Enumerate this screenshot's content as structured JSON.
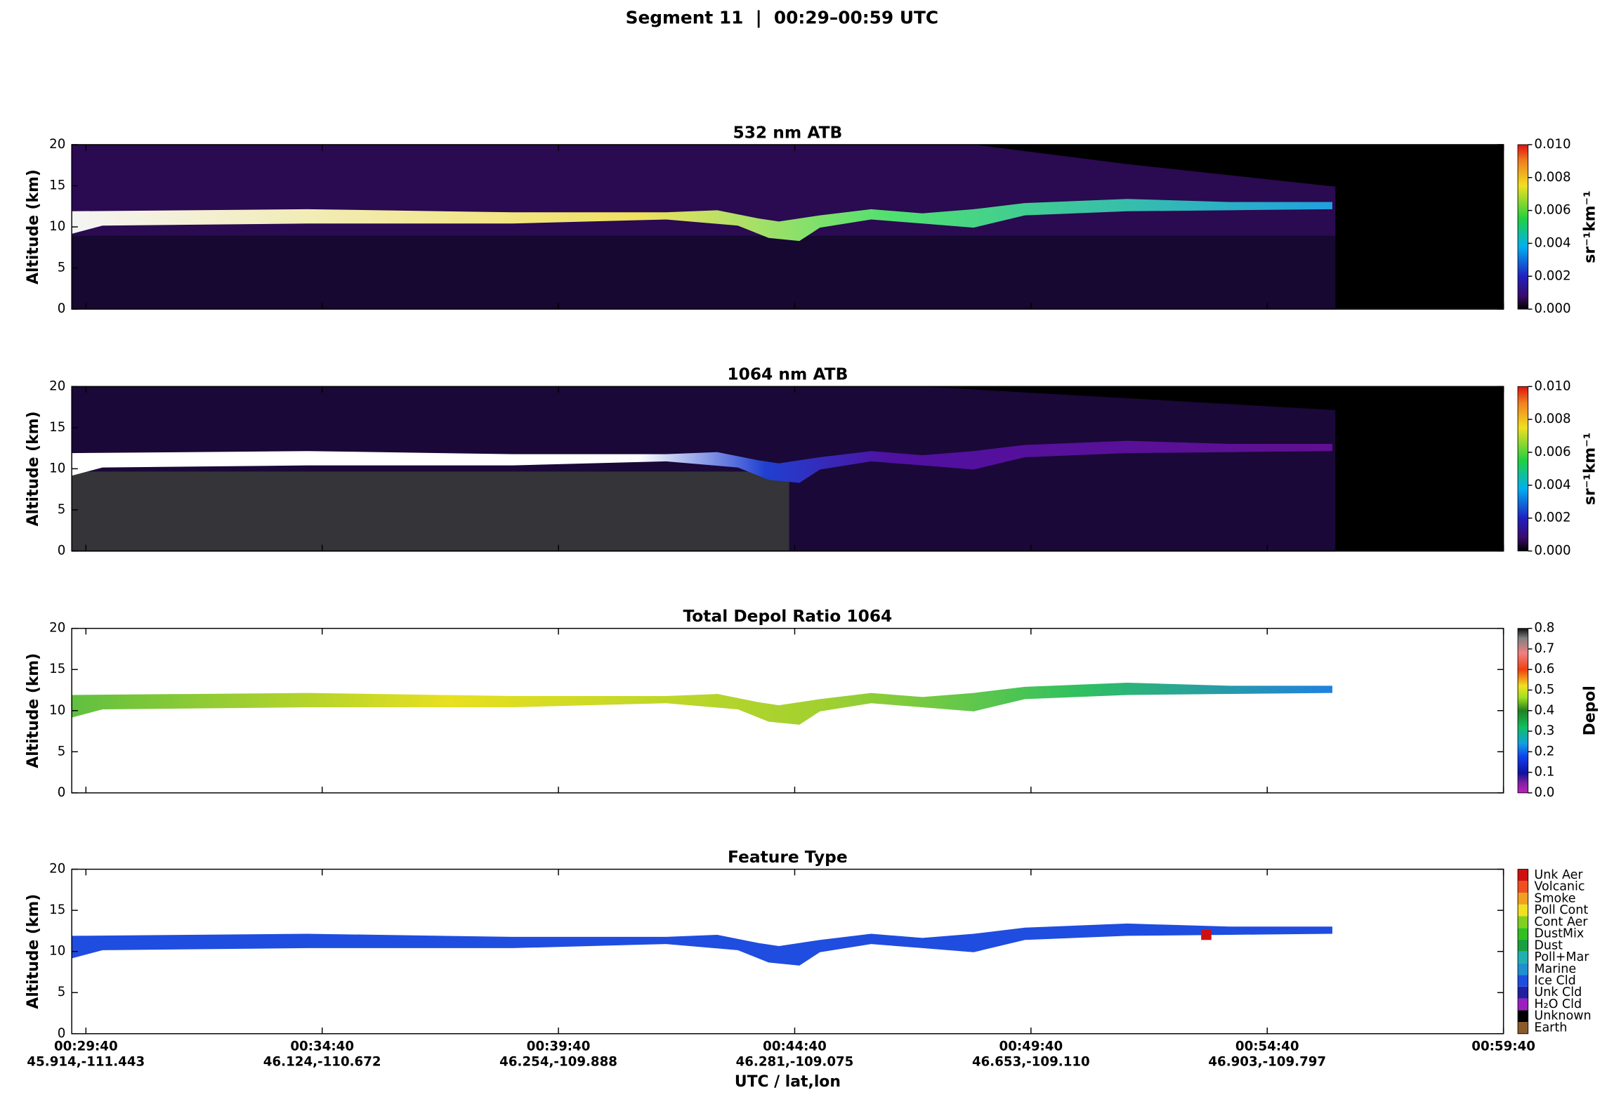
{
  "title": "Segment 11  |  00:29–00:59 UTC",
  "x_axis": {
    "label": "UTC / lat,lon",
    "xlim": [
      "00:29:22",
      "00:59:40"
    ],
    "xticks": [
      {
        "time": "00:29:40",
        "latlon": "45.914,-111.443"
      },
      {
        "time": "00:34:40",
        "latlon": "46.124,-110.672"
      },
      {
        "time": "00:39:40",
        "latlon": "46.254,-109.888"
      },
      {
        "time": "00:44:40",
        "latlon": "46.281,-109.075"
      },
      {
        "time": "00:49:40",
        "latlon": "46.653,-109.110"
      },
      {
        "time": "00:54:40",
        "latlon": "46.903,-109.797"
      },
      {
        "time": "00:59:40"
      }
    ]
  },
  "chart_data": [
    {
      "type": "heatmap",
      "title": "532 nm ATB",
      "y_label": "Altitude (km)",
      "ylim": [
        0,
        20
      ],
      "yticks": [
        0,
        5,
        10,
        15,
        20
      ],
      "colorbar": {
        "label": "sr⁻¹km⁻¹",
        "lim": [
          0,
          0.01
        ],
        "ticks": [
          {
            "value": 0,
            "label": "0.000"
          },
          {
            "value": 0.002,
            "label": "0.002"
          },
          {
            "value": 0.004,
            "label": "0.004"
          },
          {
            "value": 0.006,
            "label": "0.006"
          },
          {
            "value": 0.008,
            "label": "0.008"
          },
          {
            "value": 0.01,
            "label": "0.010"
          }
        ]
      }
    },
    {
      "type": "heatmap",
      "title": "1064 nm ATB",
      "y_label": "Altitude (km)",
      "ylim": [
        0,
        20
      ],
      "yticks": [
        0,
        5,
        10,
        15,
        20
      ],
      "colorbar": {
        "label": "sr⁻¹km⁻¹",
        "lim": [
          0,
          0.01
        ],
        "ticks": [
          {
            "value": 0,
            "label": "0.000"
          },
          {
            "value": 0.002,
            "label": "0.002"
          },
          {
            "value": 0.004,
            "label": "0.004"
          },
          {
            "value": 0.006,
            "label": "0.006"
          },
          {
            "value": 0.008,
            "label": "0.008"
          },
          {
            "value": 0.01,
            "label": "0.010"
          }
        ]
      }
    },
    {
      "type": "heatmap",
      "title": "Total Depol Ratio 1064",
      "y_label": "Altitude (km)",
      "ylim": [
        0,
        20
      ],
      "yticks": [
        0,
        5,
        10,
        15,
        20
      ],
      "colorbar": {
        "label": "Depol",
        "lim": [
          0,
          0.8
        ],
        "ticks": [
          {
            "value": 0,
            "label": "0.0"
          },
          {
            "value": 0.1,
            "label": "0.1"
          },
          {
            "value": 0.2,
            "label": "0.2"
          },
          {
            "value": 0.3,
            "label": "0.3"
          },
          {
            "value": 0.4,
            "label": "0.4"
          },
          {
            "value": 0.5,
            "label": "0.5"
          },
          {
            "value": 0.6,
            "label": "0.6"
          },
          {
            "value": 0.7,
            "label": "0.7"
          },
          {
            "value": 0.8,
            "label": "0.8"
          }
        ]
      }
    },
    {
      "type": "category-map",
      "title": "Feature Type",
      "y_label": "Altitude (km)",
      "ylim": [
        0,
        20
      ],
      "yticks": [
        0,
        5,
        10,
        15,
        20
      ],
      "colorbar": {
        "categories": [
          "Earth",
          "Unknown",
          "H₂O Cld",
          "Unk Cld",
          "Ice Cld",
          "Marine",
          "Poll+Mar",
          "Dust",
          "DustMix",
          "Cont Aer",
          "Poll Cont",
          "Smoke",
          "Volcanic",
          "Unk Aer"
        ],
        "colors": [
          "#8b5a2b",
          "#000000",
          "#9b1fc0",
          "#2020a0",
          "#1f4de0",
          "#1e90d0",
          "#20b0b0",
          "#18a040",
          "#30c020",
          "#80d020",
          "#f0e020",
          "#f0a020",
          "#f05020",
          "#d01010"
        ]
      }
    }
  ]
}
